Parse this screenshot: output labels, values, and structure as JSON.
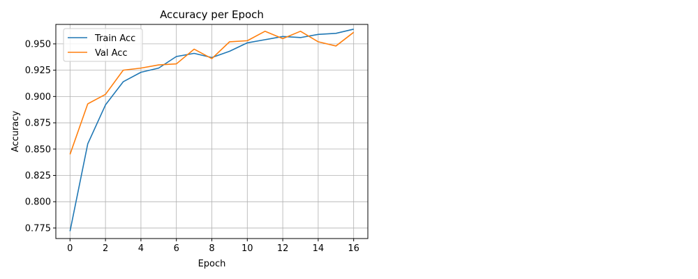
{
  "chart_data": {
    "type": "line",
    "title": "Accuracy per Epoch",
    "xlabel": "Epoch",
    "ylabel": "Accuracy",
    "x": [
      0,
      1,
      2,
      3,
      4,
      5,
      6,
      7,
      8,
      9,
      10,
      11,
      12,
      13,
      14,
      15,
      16
    ],
    "xlim": [
      -0.8,
      16.8
    ],
    "ylim": [
      0.765,
      0.9685
    ],
    "x_ticks": [
      "0",
      "2",
      "4",
      "6",
      "8",
      "10",
      "12",
      "14",
      "16"
    ],
    "y_ticks": [
      "0.775",
      "0.800",
      "0.825",
      "0.850",
      "0.875",
      "0.900",
      "0.925",
      "0.950"
    ],
    "grid": true,
    "legend_position": "upper-left",
    "series": [
      {
        "name": "Train Acc",
        "color": "#1f77b4",
        "values": [
          0.772,
          0.855,
          0.892,
          0.914,
          0.923,
          0.927,
          0.938,
          0.941,
          0.937,
          0.943,
          0.951,
          0.954,
          0.957,
          0.956,
          0.959,
          0.96,
          0.964
        ]
      },
      {
        "name": "Val Acc",
        "color": "#ff7f0e",
        "values": [
          0.845,
          0.893,
          0.902,
          0.925,
          0.927,
          0.93,
          0.931,
          0.945,
          0.936,
          0.952,
          0.953,
          0.962,
          0.955,
          0.962,
          0.952,
          0.948,
          0.961
        ]
      }
    ]
  }
}
